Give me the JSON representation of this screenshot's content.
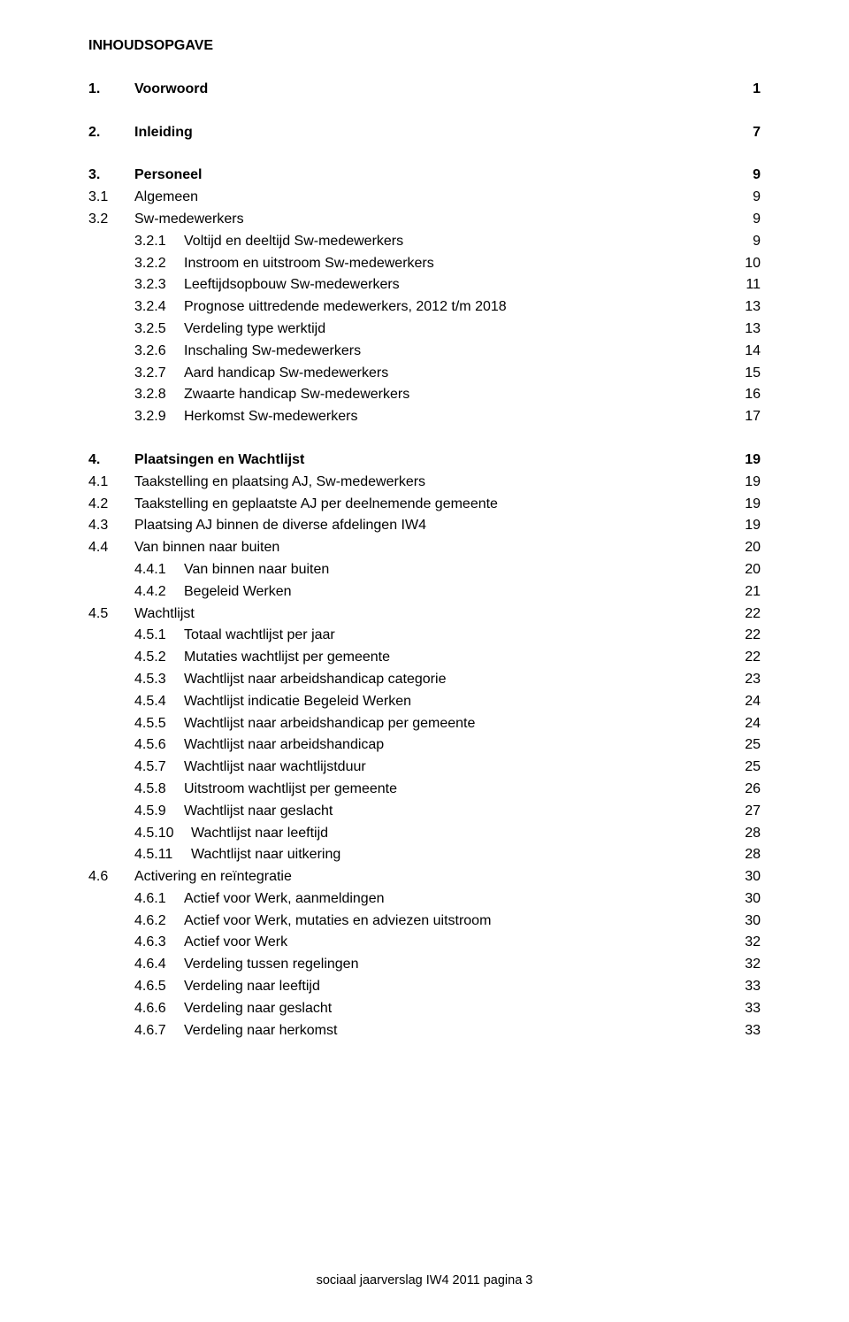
{
  "title": "INHOUDSOPGAVE",
  "footer": "sociaal jaarverslag IW4 2011 pagina 3",
  "entries": [
    {
      "level": 0,
      "num": "1.",
      "label": "Voorwoord",
      "page": "1",
      "bold": true,
      "gapAfter": true
    },
    {
      "level": 0,
      "num": "2.",
      "label": "Inleiding",
      "page": "7",
      "bold": true,
      "gapAfter": true
    },
    {
      "level": 0,
      "num": "3.",
      "label": "Personeel",
      "page": "9",
      "bold": true
    },
    {
      "level": 1,
      "num": "3.1",
      "label": "Algemeen",
      "page": "9"
    },
    {
      "level": 1,
      "num": "3.2",
      "label": "Sw-medewerkers",
      "page": "9"
    },
    {
      "level": 2,
      "num": "3.2.1",
      "label": "Voltijd en deeltijd Sw-medewerkers",
      "page": "9"
    },
    {
      "level": 2,
      "num": "3.2.2",
      "label": "Instroom en uitstroom Sw-medewerkers",
      "page": "10"
    },
    {
      "level": 2,
      "num": "3.2.3",
      "label": "Leeftijdsopbouw Sw-medewerkers",
      "page": "11"
    },
    {
      "level": 2,
      "num": "3.2.4",
      "label": "Prognose uittredende medewerkers, 2012 t/m 2018",
      "page": "13"
    },
    {
      "level": 2,
      "num": "3.2.5",
      "label": "Verdeling type werktijd",
      "page": "13"
    },
    {
      "level": 2,
      "num": "3.2.6",
      "label": "Inschaling Sw-medewerkers",
      "page": "14"
    },
    {
      "level": 2,
      "num": "3.2.7",
      "label": "Aard handicap Sw-medewerkers",
      "page": "15"
    },
    {
      "level": 2,
      "num": "3.2.8",
      "label": "Zwaarte handicap Sw-medewerkers",
      "page": "16"
    },
    {
      "level": 2,
      "num": "3.2.9",
      "label": "Herkomst Sw-medewerkers",
      "page": "17",
      "gapAfter": true
    },
    {
      "level": 0,
      "num": "4.",
      "label": "Plaatsingen en Wachtlijst",
      "page": "19",
      "bold": true
    },
    {
      "level": 1,
      "num": "4.1",
      "label": "Taakstelling en plaatsing AJ, Sw-medewerkers",
      "page": "19"
    },
    {
      "level": 1,
      "num": "4.2",
      "label": "Taakstelling en geplaatste AJ per deelnemende gemeente",
      "page": "19"
    },
    {
      "level": 1,
      "num": "4.3",
      "label": "Plaatsing AJ binnen de diverse afdelingen IW4",
      "page": "19"
    },
    {
      "level": 1,
      "num": "4.4",
      "label": "Van binnen naar buiten",
      "page": "20"
    },
    {
      "level": 2,
      "num": "4.4.1",
      "label": "Van binnen naar buiten",
      "page": "20"
    },
    {
      "level": 2,
      "num": "4.4.2",
      "label": "Begeleid Werken",
      "page": "21"
    },
    {
      "level": 1,
      "num": "4.5",
      "label": "Wachtlijst",
      "page": "22"
    },
    {
      "level": 2,
      "num": "4.5.1",
      "label": "Totaal wachtlijst per jaar",
      "page": "22"
    },
    {
      "level": 2,
      "num": "4.5.2",
      "label": "Mutaties wachtlijst per gemeente",
      "page": "22"
    },
    {
      "level": 2,
      "num": "4.5.3",
      "label": "Wachtlijst naar arbeidshandicap categorie",
      "page": "23"
    },
    {
      "level": 2,
      "num": "4.5.4",
      "label": "Wachtlijst indicatie Begeleid Werken",
      "page": "24"
    },
    {
      "level": 2,
      "num": "4.5.5",
      "label": "Wachtlijst naar arbeidshandicap per gemeente",
      "page": "24"
    },
    {
      "level": 2,
      "num": "4.5.6",
      "label": "Wachtlijst naar arbeidshandicap",
      "page": "25",
      "numPrefixSpace": true
    },
    {
      "level": 2,
      "num": "4.5.7",
      "label": "Wachtlijst naar wachtlijstduur",
      "page": "25"
    },
    {
      "level": 2,
      "num": "4.5.8",
      "label": "Uitstroom wachtlijst per gemeente",
      "page": "26"
    },
    {
      "level": 2,
      "num": "4.5.9",
      "label": "Wachtlijst naar geslacht",
      "page": "27"
    },
    {
      "level": 2,
      "num": "4.5.10",
      "label": "Wachtlijst naar leeftijd",
      "page": "28"
    },
    {
      "level": 2,
      "num": "4.5.11",
      "label": "Wachtlijst naar uitkering",
      "page": "28"
    },
    {
      "level": 1,
      "num": "4.6",
      "label": "Activering en reïntegratie",
      "page": "30"
    },
    {
      "level": 2,
      "num": "4.6.1",
      "label": "Actief voor Werk, aanmeldingen",
      "page": "30"
    },
    {
      "level": 2,
      "num": "4.6.2",
      "label": "Actief voor Werk, mutaties en adviezen uitstroom",
      "page": "30"
    },
    {
      "level": 2,
      "num": "4.6.3",
      "label": "Actief voor Werk",
      "page": "32"
    },
    {
      "level": 2,
      "num": "4.6.4",
      "label": "Verdeling tussen regelingen",
      "page": "32"
    },
    {
      "level": 2,
      "num": "4.6.5",
      "label": "Verdeling naar leeftijd",
      "page": "33"
    },
    {
      "level": 2,
      "num": "4.6.6",
      "label": "Verdeling naar geslacht",
      "page": "33"
    },
    {
      "level": 2,
      "num": "4.6.7",
      "label": "Verdeling naar herkomst",
      "page": "33"
    }
  ]
}
